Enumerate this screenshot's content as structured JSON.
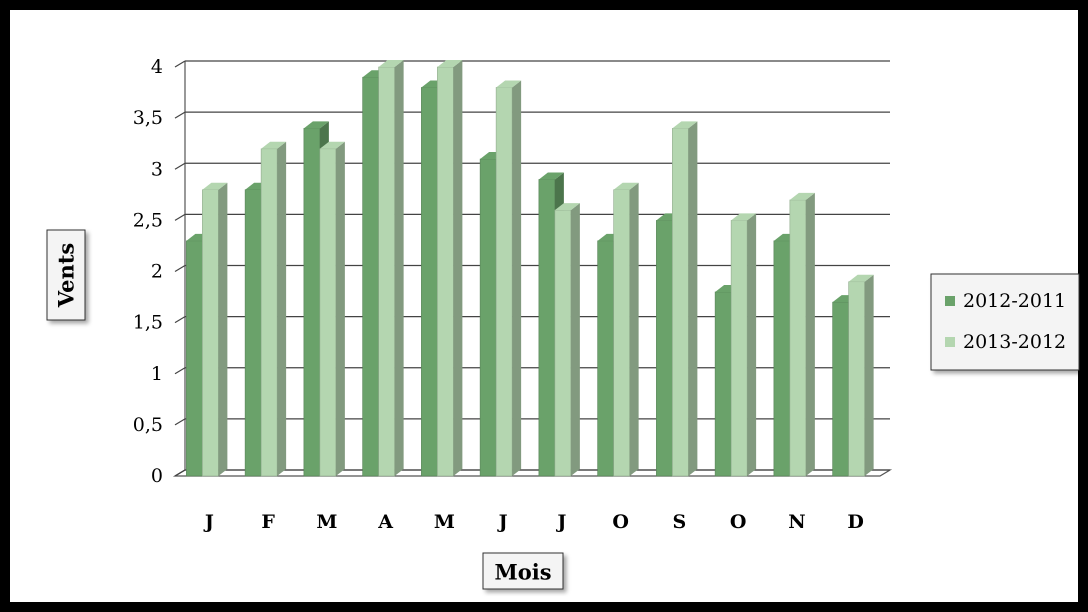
{
  "chart_data": {
    "type": "bar",
    "title": "",
    "xlabel": "Mois",
    "ylabel": "Vents",
    "categories": [
      "J",
      "F",
      "M",
      "A",
      "M",
      "J",
      "J",
      "O",
      "S",
      "O",
      "N",
      "D"
    ],
    "series": [
      {
        "name": "2012-2011",
        "color": "#6aa26a",
        "values": [
          2.3,
          2.8,
          3.4,
          3.9,
          3.8,
          3.1,
          2.9,
          2.3,
          2.5,
          1.8,
          2.3,
          1.7
        ]
      },
      {
        "name": "2013-2012",
        "color": "#b4d6b0",
        "values": [
          2.8,
          3.2,
          3.2,
          4.0,
          4.0,
          3.8,
          2.6,
          2.8,
          3.4,
          2.5,
          2.7,
          1.9
        ]
      }
    ],
    "ylim": [
      0,
      4
    ],
    "yticks": [
      "0",
      "0,5",
      "1",
      "1,5",
      "2",
      "2,5",
      "3",
      "3,5",
      "4"
    ],
    "grid": true,
    "legend_position": "right"
  }
}
